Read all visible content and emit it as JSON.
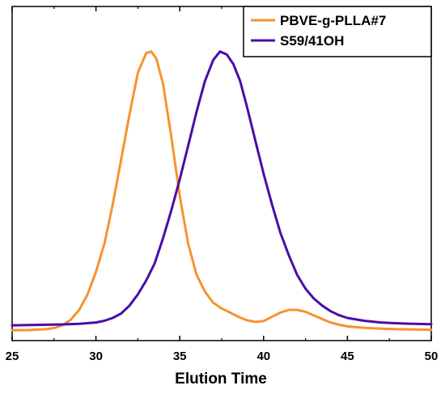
{
  "chart_data": {
    "type": "line",
    "title": "",
    "xlabel": "Elution Time",
    "ylabel": "",
    "xlim": [
      25,
      50
    ],
    "ylim": [
      0,
      1
    ],
    "x_ticks": [
      "25",
      "30",
      "35",
      "40",
      "45",
      "50"
    ],
    "grid": false,
    "legend_position": "top-right",
    "series": [
      {
        "name": "PBVE-g-PLLA#7",
        "color": "#f7922f",
        "points": [
          [
            25,
            0.002
          ],
          [
            26,
            0.003
          ],
          [
            27,
            0.006
          ],
          [
            27.5,
            0.01
          ],
          [
            28,
            0.02
          ],
          [
            28.5,
            0.04
          ],
          [
            29,
            0.075
          ],
          [
            29.5,
            0.13
          ],
          [
            30,
            0.21
          ],
          [
            30.5,
            0.31
          ],
          [
            31,
            0.45
          ],
          [
            31.5,
            0.61
          ],
          [
            32,
            0.77
          ],
          [
            32.5,
            0.92
          ],
          [
            33,
            0.99
          ],
          [
            33.3,
            0.995
          ],
          [
            33.6,
            0.97
          ],
          [
            34,
            0.88
          ],
          [
            34.5,
            0.69
          ],
          [
            35,
            0.48
          ],
          [
            35.5,
            0.31
          ],
          [
            36,
            0.2
          ],
          [
            36.5,
            0.14
          ],
          [
            37,
            0.1
          ],
          [
            37.5,
            0.08
          ],
          [
            38,
            0.065
          ],
          [
            38.5,
            0.05
          ],
          [
            39,
            0.038
          ],
          [
            39.5,
            0.032
          ],
          [
            40,
            0.035
          ],
          [
            40.5,
            0.05
          ],
          [
            41,
            0.065
          ],
          [
            41.5,
            0.075
          ],
          [
            42,
            0.075
          ],
          [
            42.5,
            0.068
          ],
          [
            43,
            0.055
          ],
          [
            43.5,
            0.042
          ],
          [
            44,
            0.03
          ],
          [
            44.5,
            0.022
          ],
          [
            45,
            0.016
          ],
          [
            46,
            0.011
          ],
          [
            47,
            0.008
          ],
          [
            48,
            0.006
          ],
          [
            49,
            0.005
          ],
          [
            50,
            0.004
          ]
        ]
      },
      {
        "name": "S59/41OH",
        "color": "#4b0ca8",
        "points": [
          [
            25,
            0.02
          ],
          [
            26,
            0.021
          ],
          [
            27,
            0.022
          ],
          [
            28,
            0.023
          ],
          [
            29,
            0.025
          ],
          [
            30,
            0.03
          ],
          [
            30.5,
            0.036
          ],
          [
            31,
            0.046
          ],
          [
            31.5,
            0.062
          ],
          [
            32,
            0.09
          ],
          [
            32.5,
            0.13
          ],
          [
            33,
            0.18
          ],
          [
            33.5,
            0.24
          ],
          [
            34,
            0.33
          ],
          [
            34.5,
            0.43
          ],
          [
            35,
            0.54
          ],
          [
            35.5,
            0.66
          ],
          [
            36,
            0.78
          ],
          [
            36.5,
            0.89
          ],
          [
            37,
            0.965
          ],
          [
            37.4,
            0.995
          ],
          [
            37.8,
            0.985
          ],
          [
            38.2,
            0.95
          ],
          [
            38.6,
            0.89
          ],
          [
            39,
            0.8
          ],
          [
            39.5,
            0.68
          ],
          [
            40,
            0.56
          ],
          [
            40.5,
            0.45
          ],
          [
            41,
            0.35
          ],
          [
            41.5,
            0.27
          ],
          [
            42,
            0.2
          ],
          [
            42.5,
            0.15
          ],
          [
            43,
            0.115
          ],
          [
            43.5,
            0.09
          ],
          [
            44,
            0.07
          ],
          [
            44.5,
            0.056
          ],
          [
            45,
            0.046
          ],
          [
            46,
            0.036
          ],
          [
            47,
            0.03
          ],
          [
            48,
            0.027
          ],
          [
            49,
            0.025
          ],
          [
            50,
            0.024
          ]
        ]
      }
    ]
  }
}
